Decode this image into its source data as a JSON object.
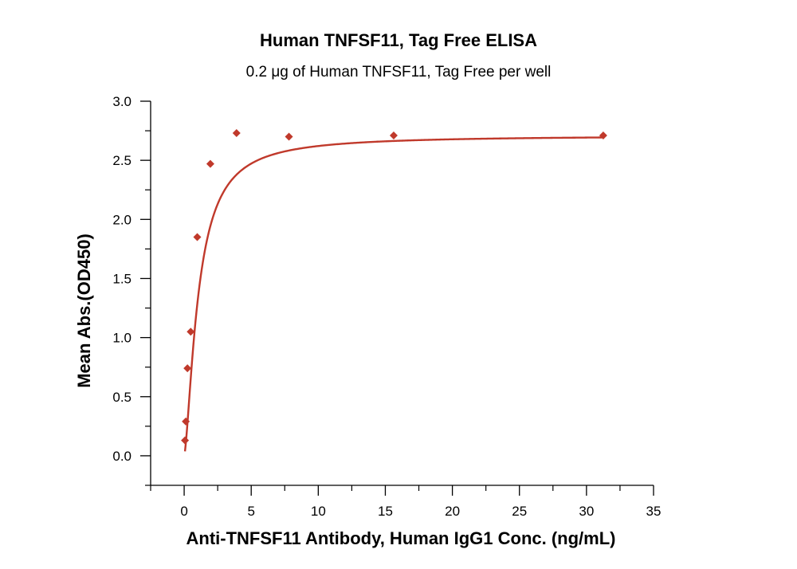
{
  "chart_data": {
    "type": "scatter",
    "title": "Human TNFSF11, Tag Free ELISA",
    "subtitle": "0.2 μg of Human TNFSF11, Tag Free per well",
    "xlabel": "Anti-TNFSF11 Antibody, Human IgG1 Conc. (ng/mL)",
    "ylabel": "Mean Abs.(OD450)",
    "xlim": [
      -2.5,
      35
    ],
    "ylim": [
      -0.25,
      3.0
    ],
    "x_ticks": [
      0,
      5,
      10,
      15,
      20,
      25,
      30,
      35
    ],
    "y_ticks": [
      0.0,
      0.5,
      1.0,
      1.5,
      2.0,
      2.5,
      3.0
    ],
    "x_tick_labels": [
      "0",
      "5",
      "10",
      "15",
      "20",
      "25",
      "30",
      "35"
    ],
    "y_tick_labels": [
      "0.0",
      "0.5",
      "1.0",
      "1.5",
      "2.0",
      "2.5",
      "3.0"
    ],
    "series": [
      {
        "color": "#c0392b",
        "marker": "diamond",
        "x": [
          0.061,
          0.122,
          0.244,
          0.488,
          0.977,
          1.953,
          3.906,
          7.813,
          15.625,
          31.25
        ],
        "y": [
          0.13,
          0.29,
          0.74,
          1.05,
          1.85,
          2.47,
          2.73,
          2.7,
          2.71,
          2.71
        ]
      }
    ],
    "fit_curve": {
      "type": "4PL",
      "color": "#c0392b",
      "bottom": 0.0,
      "top": 2.71,
      "ec50": 1.05,
      "hill": 1.5
    },
    "grid": false,
    "legend": "none"
  }
}
